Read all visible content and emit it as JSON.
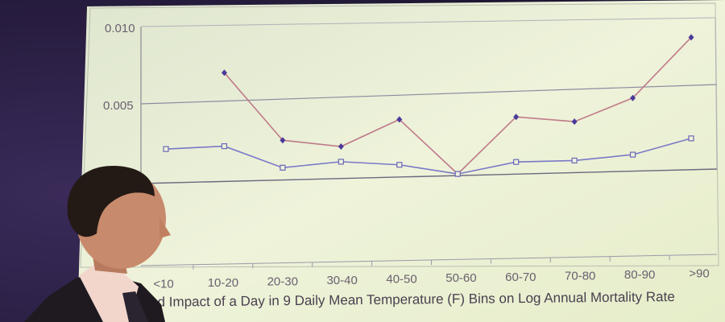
{
  "chart_data": {
    "type": "line",
    "categories": [
      "<10",
      "10-20",
      "20-30",
      "30-40",
      "40-50",
      "50-60",
      "60-70",
      "70-80",
      "80-90",
      ">90"
    ],
    "y_ticks": [
      "0.010",
      "0.005"
    ],
    "ylim": [
      0,
      0.01
    ],
    "xlabel": "ated Impact of a Day in 9 Daily Mean Temperature (F) Bins on Log Annual Mortality Rate",
    "series": [
      {
        "color": "#c07a8a",
        "marker": "filled-diamond",
        "values": [
          null,
          0.007,
          0.0025,
          0.002,
          0.0037,
          0.0,
          0.0037,
          0.0033,
          0.0048,
          0.0088
        ]
      },
      {
        "color": "#7a78c8",
        "marker": "hollow-square",
        "values": [
          0.0021,
          0.0022,
          0.0007,
          0.001,
          0.0007,
          0.0,
          0.0007,
          0.0007,
          0.001,
          0.002
        ]
      }
    ],
    "grid": true
  },
  "colors": {
    "wall": "#2b1f45",
    "screen": "#ecf2d6",
    "suit": "#1e1a20",
    "shirt": "#f2d6cc",
    "skin": "#c88a6c",
    "hair": "#231a16"
  }
}
